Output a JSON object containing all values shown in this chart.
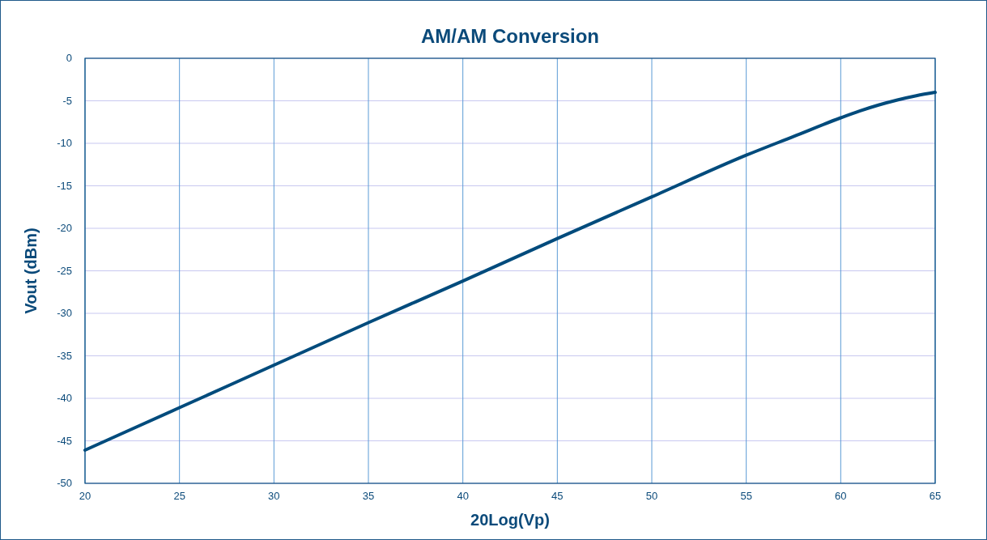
{
  "chart_data": {
    "type": "line",
    "title": "AM/AM Conversion",
    "xlabel": "20Log(Vp)",
    "ylabel": "Vout (dBm)",
    "x": [
      20,
      25,
      30,
      35,
      40,
      45,
      50,
      55,
      57.5,
      60,
      61,
      62,
      63,
      64,
      65
    ],
    "series": [
      {
        "color": "#004b7c",
        "values": [
          -46.1,
          -41.1,
          -36.1,
          -31.1,
          -26.2,
          -21.2,
          -16.3,
          -11.4,
          -9.2,
          -7.0,
          -6.2,
          -5.5,
          -4.9,
          -4.4,
          -4.0
        ]
      }
    ],
    "xlim": [
      20,
      65
    ],
    "xticks": [
      20,
      25,
      30,
      35,
      40,
      45,
      50,
      55,
      60,
      65
    ],
    "ylim": [
      -50,
      0
    ],
    "yticks": [
      -50,
      -45,
      -40,
      -35,
      -30,
      -25,
      -20,
      -15,
      -10,
      -5,
      0
    ],
    "grid": true,
    "marker": "none",
    "line_style": "solid"
  }
}
